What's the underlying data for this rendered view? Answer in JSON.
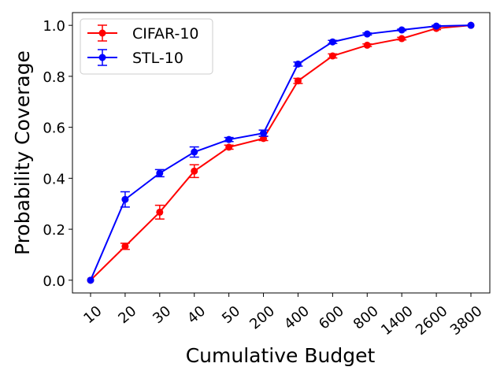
{
  "chart_data": {
    "type": "line",
    "title": "",
    "xlabel": "Cumulative Budget",
    "ylabel": "Probability Coverage",
    "categories": [
      "10",
      "20",
      "30",
      "40",
      "50",
      "200",
      "400",
      "600",
      "800",
      "1400",
      "2600",
      "3800"
    ],
    "yticks": [
      "0.0",
      "0.2",
      "0.4",
      "0.6",
      "0.8",
      "1.0"
    ],
    "ylim": [
      -0.05,
      1.05
    ],
    "grid": false,
    "legend_position": "upper-left",
    "series": [
      {
        "name": "CIFAR-10",
        "color": "#ff0000",
        "values": [
          0.0,
          0.133,
          0.267,
          0.428,
          0.522,
          0.556,
          0.782,
          0.88,
          0.922,
          0.948,
          0.988,
          1.0
        ],
        "errors": [
          0.0,
          0.012,
          0.027,
          0.025,
          0.008,
          0.008,
          0.01,
          0.008,
          0.005,
          0.005,
          0.005,
          0.0
        ]
      },
      {
        "name": "STL-10",
        "color": "#0000ff",
        "values": [
          0.0,
          0.317,
          0.42,
          0.503,
          0.552,
          0.577,
          0.848,
          0.935,
          0.966,
          0.982,
          0.997,
          1.0
        ],
        "errors": [
          0.0,
          0.03,
          0.014,
          0.02,
          0.008,
          0.012,
          0.008,
          0.006,
          0.004,
          0.003,
          0.003,
          0.0
        ]
      }
    ]
  }
}
